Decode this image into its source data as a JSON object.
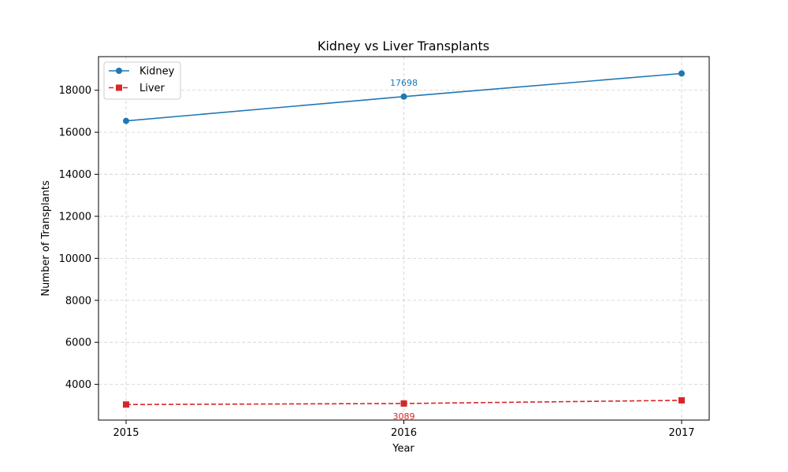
{
  "chart_data": {
    "type": "line",
    "title": "Kidney vs Liver Transplants",
    "xlabel": "Year",
    "ylabel": "Number of Transplants",
    "x": [
      "2015",
      "2016",
      "2017"
    ],
    "ylim": [
      2300,
      19600
    ],
    "yticks": [
      4000,
      6000,
      8000,
      10000,
      12000,
      14000,
      16000,
      18000
    ],
    "grid": true,
    "legend_position": "upper-left",
    "series": [
      {
        "name": "Kidney",
        "values": [
          16540,
          17698,
          18800
        ],
        "color": "#1f77b4",
        "marker": "circle",
        "line_style": "solid"
      },
      {
        "name": "Liver",
        "values": [
          3040,
          3089,
          3240
        ],
        "color": "#d62728",
        "marker": "square",
        "line_style": "dashed"
      }
    ],
    "annotations": [
      {
        "series": "Kidney",
        "x": "2016",
        "y": 17698,
        "text": "17698",
        "position": "above"
      },
      {
        "series": "Liver",
        "x": "2016",
        "y": 3089,
        "text": "3089",
        "position": "below"
      }
    ]
  }
}
